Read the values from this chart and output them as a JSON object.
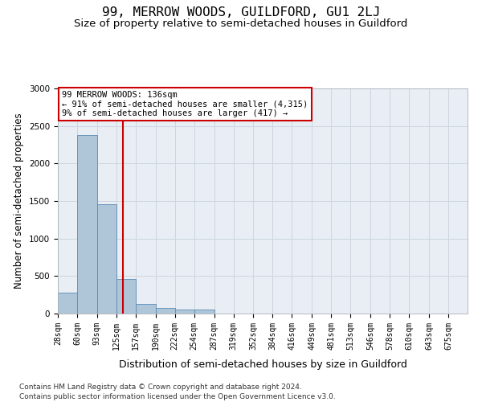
{
  "title": "99, MERROW WOODS, GUILDFORD, GU1 2LJ",
  "subtitle": "Size of property relative to semi-detached houses in Guildford",
  "xlabel": "Distribution of semi-detached houses by size in Guildford",
  "ylabel": "Number of semi-detached properties",
  "footnote1": "Contains HM Land Registry data © Crown copyright and database right 2024.",
  "footnote2": "Contains public sector information licensed under the Open Government Licence v3.0.",
  "annotation_line1": "99 MERROW WOODS: 136sqm",
  "annotation_line2": "← 91% of semi-detached houses are smaller (4,315)",
  "annotation_line3": "9% of semi-detached houses are larger (417) →",
  "property_size": 136,
  "bar_left_edges": [
    28,
    60,
    93,
    125,
    157,
    190,
    222,
    254,
    287,
    319,
    352,
    384,
    416,
    449,
    481,
    513,
    546,
    578,
    610,
    643
  ],
  "bar_widths": [
    32,
    33,
    32,
    32,
    33,
    32,
    32,
    33,
    32,
    33,
    32,
    32,
    33,
    32,
    32,
    33,
    32,
    32,
    33,
    32
  ],
  "bar_heights": [
    280,
    2380,
    1460,
    460,
    130,
    75,
    55,
    55,
    5,
    5,
    5,
    5,
    5,
    5,
    5,
    5,
    5,
    5,
    5,
    5
  ],
  "bar_color": "#aec6d8",
  "bar_edge_color": "#5a8ab5",
  "red_line_x": 136,
  "red_line_color": "#cc0000",
  "ylim": [
    0,
    3000
  ],
  "yticks": [
    0,
    500,
    1000,
    1500,
    2000,
    2500,
    3000
  ],
  "xtick_labels": [
    "28sqm",
    "60sqm",
    "93sqm",
    "125sqm",
    "157sqm",
    "190sqm",
    "222sqm",
    "254sqm",
    "287sqm",
    "319sqm",
    "352sqm",
    "384sqm",
    "416sqm",
    "449sqm",
    "481sqm",
    "513sqm",
    "546sqm",
    "578sqm",
    "610sqm",
    "643sqm",
    "675sqm"
  ],
  "xtick_positions": [
    28,
    60,
    93,
    125,
    157,
    190,
    222,
    254,
    287,
    319,
    352,
    384,
    416,
    449,
    481,
    513,
    546,
    578,
    610,
    643,
    675
  ],
  "annotation_box_color": "#ffffff",
  "annotation_box_edge": "#cc0000",
  "background_color": "#ffffff",
  "grid_color": "#cdd5de",
  "title_fontsize": 11.5,
  "subtitle_fontsize": 9.5,
  "axis_label_fontsize": 8.5,
  "tick_fontsize": 7.5,
  "annotation_fontsize": 7.5,
  "footnote_fontsize": 6.5
}
